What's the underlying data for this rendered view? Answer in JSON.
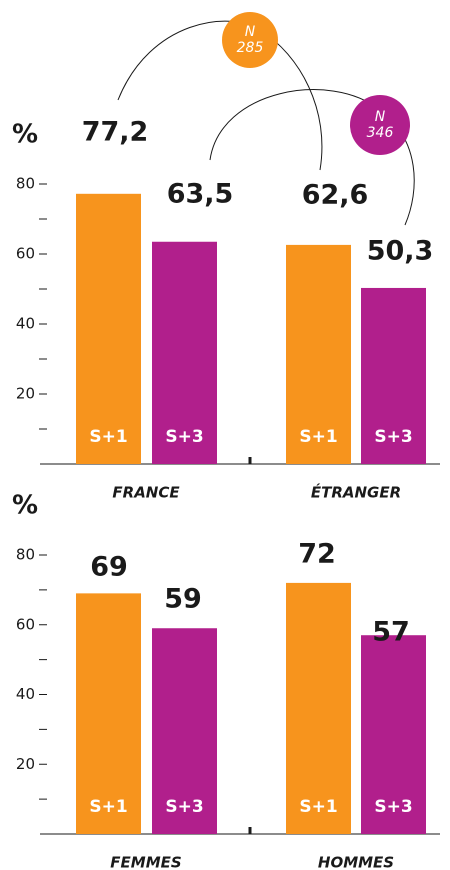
{
  "chart_data": [
    {
      "type": "bar",
      "ylabel": "%",
      "categories": [
        "FRANCE",
        "ÉTRANGER"
      ],
      "series": [
        {
          "name": "S+1",
          "color": "#f7941d",
          "values": [
            77.2,
            62.6
          ],
          "value_labels": [
            "77,2",
            "62,6"
          ]
        },
        {
          "name": "S+3",
          "color": "#b11f8c",
          "values": [
            63.5,
            50.3
          ],
          "value_labels": [
            "63,5",
            "50,3"
          ]
        }
      ],
      "ylim": [
        0,
        80
      ],
      "yticks": [
        20,
        40,
        60,
        80
      ],
      "minor_yticks": [
        10,
        30,
        50,
        70
      ],
      "annotations": [
        {
          "label": "N",
          "value": 285,
          "color": "#f7941d"
        },
        {
          "label": "N",
          "value": 346,
          "color": "#b11f8c"
        }
      ]
    },
    {
      "type": "bar",
      "ylabel": "%",
      "categories": [
        "FEMMES",
        "HOMMES"
      ],
      "series": [
        {
          "name": "S+1",
          "color": "#f7941d",
          "values": [
            69,
            72
          ]
        },
        {
          "name": "S+3",
          "color": "#b11f8c",
          "values": [
            59,
            57
          ]
        }
      ],
      "ylim": [
        0,
        80
      ],
      "yticks": [
        20,
        40,
        60,
        80
      ],
      "minor_yticks": [
        10,
        30,
        50,
        70
      ]
    }
  ]
}
